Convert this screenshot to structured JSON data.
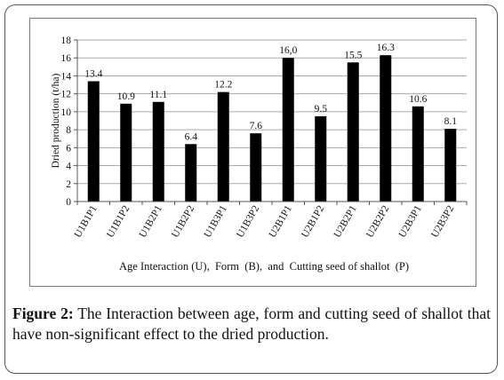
{
  "chart_data": {
    "type": "bar",
    "categories": [
      "U1B1P1",
      "U1B1P2",
      "U1B2P1",
      "U1B2P2",
      "U1B3P1",
      "U1B3P2",
      "U2B1P1",
      "U2B1P2",
      "U2B2P1",
      "U2B2P2",
      "U2B3P1",
      "U2B3P2"
    ],
    "values": [
      13.4,
      10.9,
      11.1,
      6.4,
      12.2,
      7.6,
      16.0,
      9.5,
      15.5,
      16.3,
      10.6,
      8.1
    ],
    "value_labels": [
      "13.4",
      "10.9",
      "11.1",
      "6.4",
      "12.2",
      "7.6",
      "16,0",
      "9.5",
      "15.5",
      "16.3",
      "10.6",
      "8.1"
    ],
    "xlabel": "Age Interaction (U),  Form  (B),  and  Cutting seed of shallot  (P)",
    "ylabel": "Dried production (t/ha)",
    "ylim": [
      0,
      18
    ],
    "yticks": [
      "0",
      "2",
      "4",
      "6",
      "8",
      "10",
      "12",
      "14",
      "16",
      "18"
    ],
    "grid": true,
    "bar_color": "#000000"
  },
  "caption": {
    "label": "Figure 2:",
    "text": " The Interaction between age, form and cutting seed of shallot that have non-significant effect to the dried production."
  }
}
